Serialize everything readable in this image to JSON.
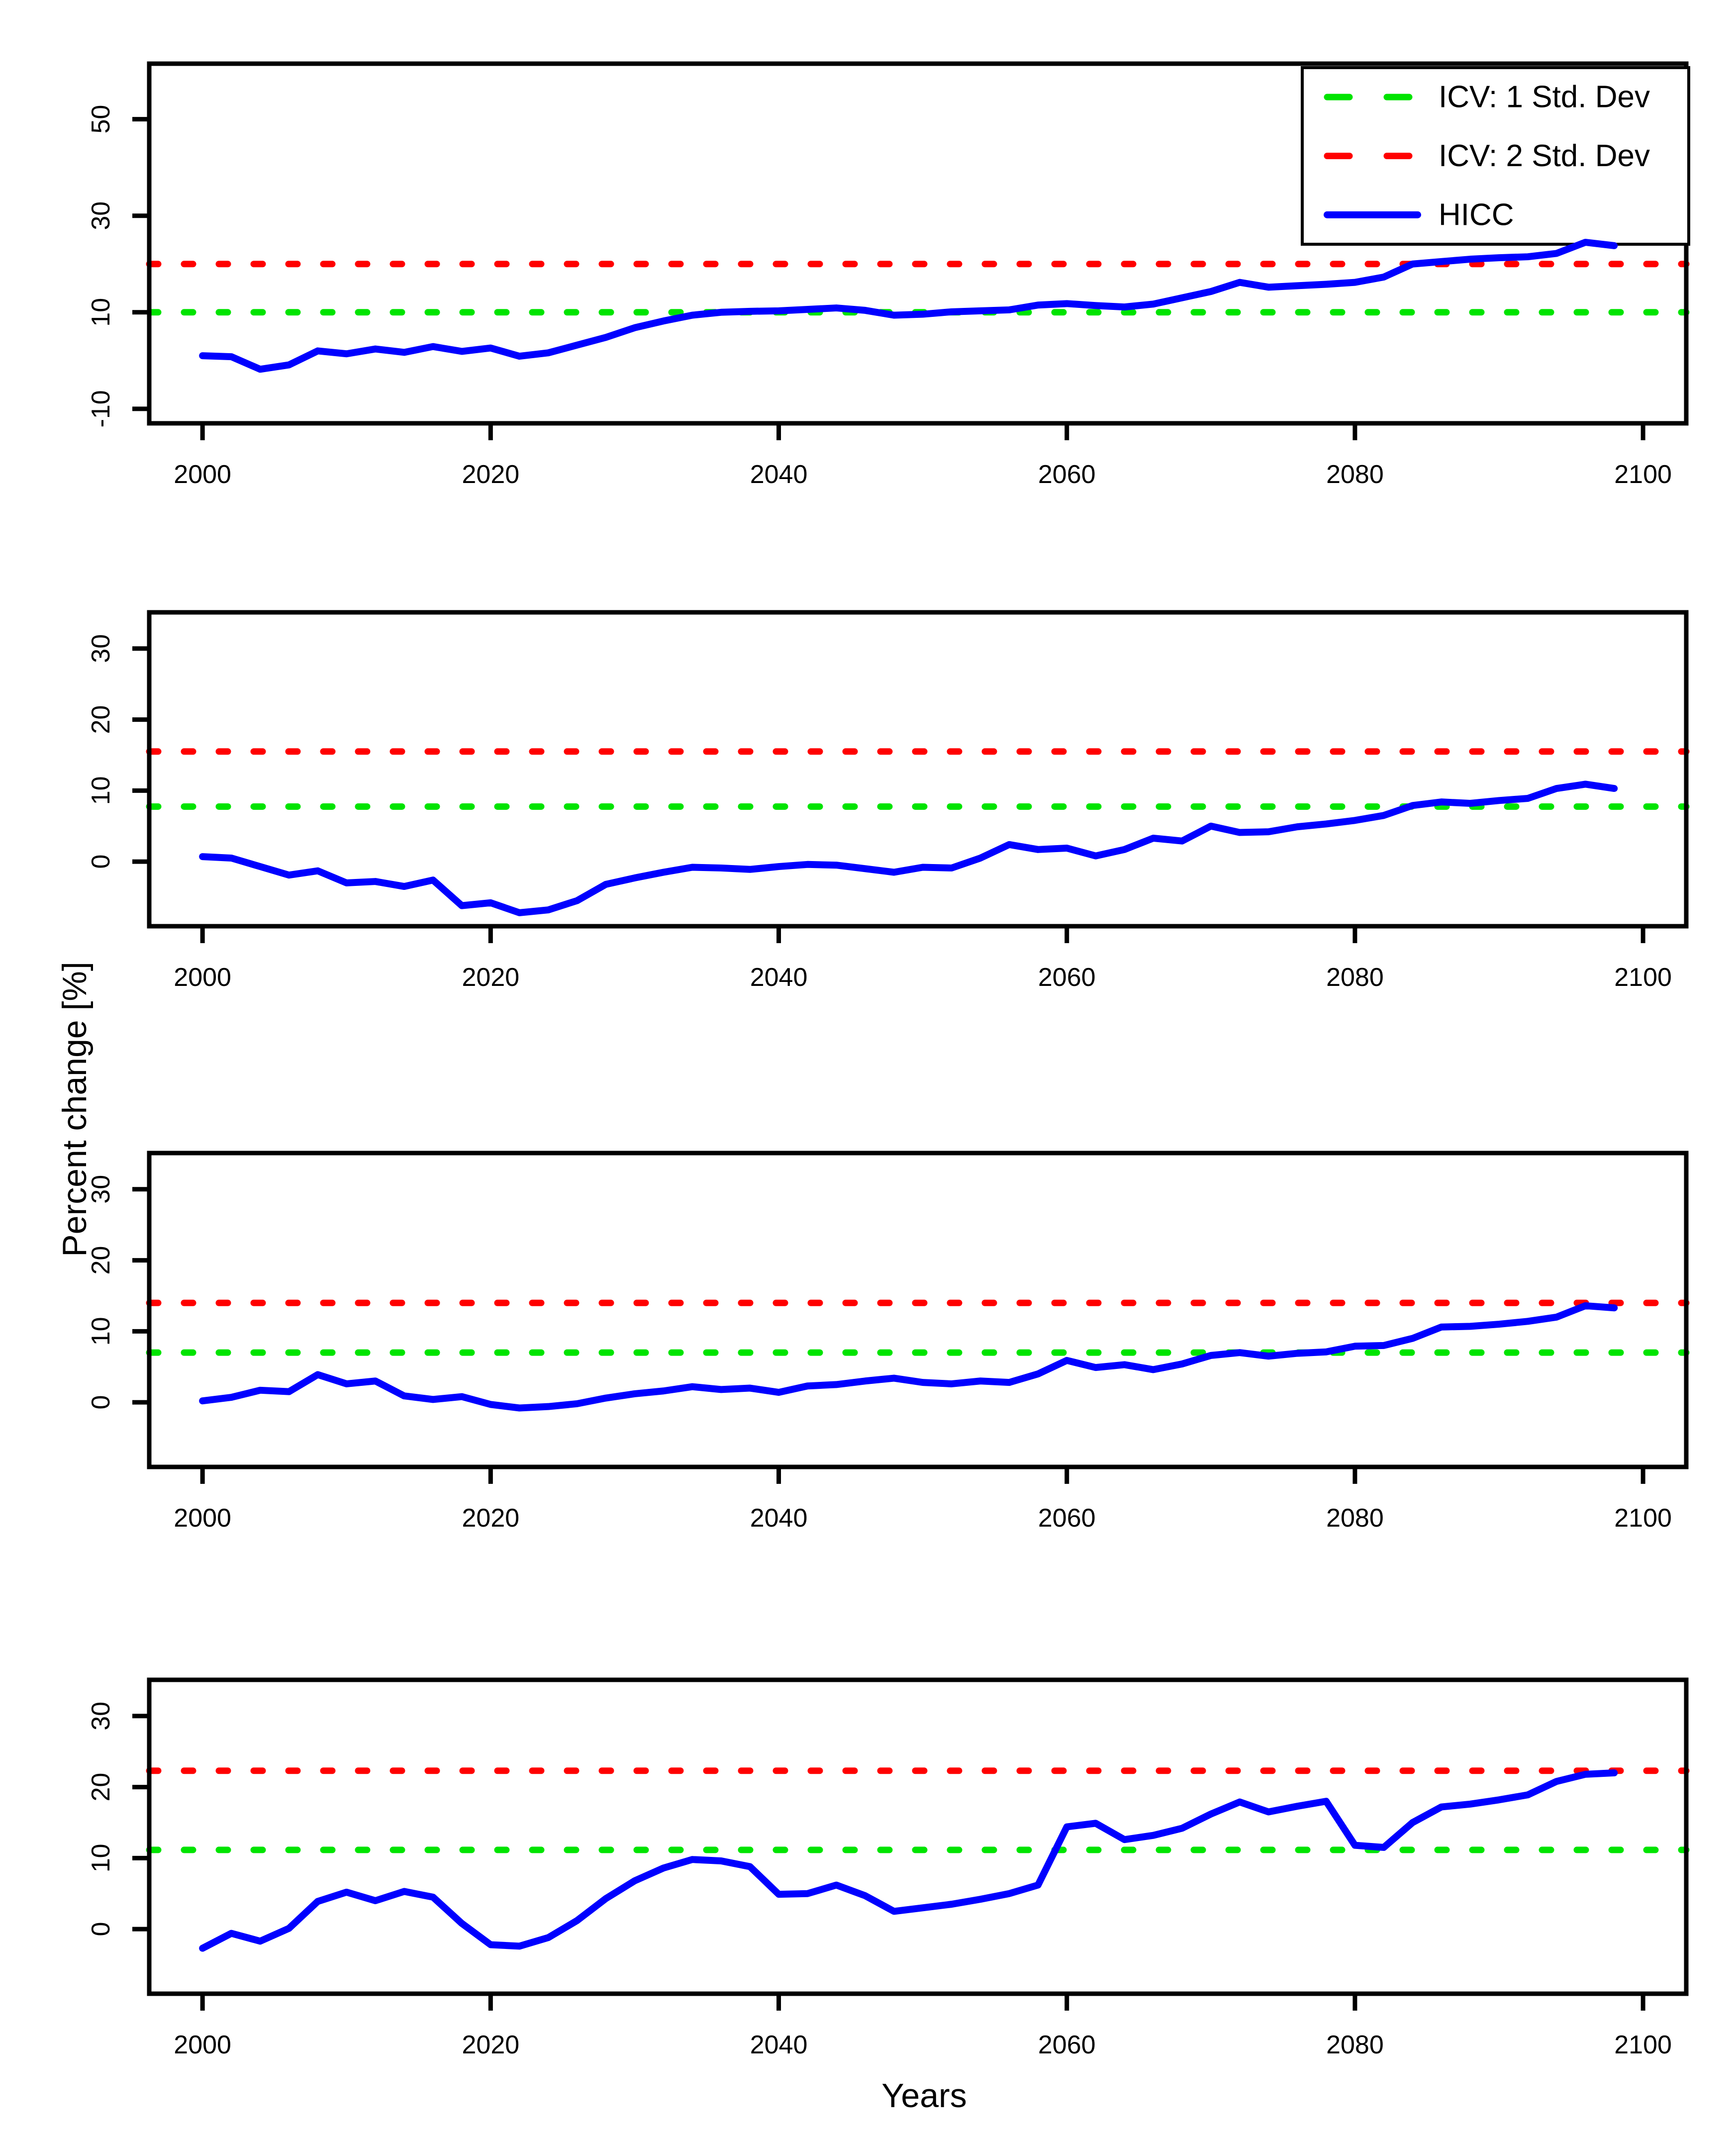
{
  "figure": {
    "ylabel": "Percent change [%]",
    "xlabel": "Years",
    "background": "#ffffff",
    "axis_color": "#000000"
  },
  "legend": {
    "position": "top-right-panel-1",
    "items": [
      {
        "label": "ICV: 1 Std. Dev",
        "color": "#00e400",
        "style": "dashed"
      },
      {
        "label": "ICV: 2 Std. Dev",
        "color": "#ff0000",
        "style": "dashed"
      },
      {
        "label": "HICC",
        "color": "#0000ff",
        "style": "solid"
      }
    ]
  },
  "chart_data": [
    {
      "type": "line",
      "panel": 1,
      "title": "",
      "xlabel": "",
      "ylabel": "",
      "grid": false,
      "xlim": [
        1996.3,
        2103.0
      ],
      "ylim": [
        -13.0,
        61.5
      ],
      "xticks": [
        2000,
        2020,
        2040,
        2060,
        2080,
        2100
      ],
      "yticks": [
        -10,
        10,
        30,
        50
      ],
      "x": [
        2000,
        2002,
        2004,
        2006,
        2008,
        2010,
        2012,
        2014,
        2016,
        2018,
        2020,
        2022,
        2024,
        2026,
        2028,
        2030,
        2032,
        2034,
        2036,
        2038,
        2040,
        2042,
        2044,
        2046,
        2048,
        2050,
        2052,
        2054,
        2056,
        2058,
        2060,
        2062,
        2064,
        2066,
        2068,
        2070,
        2072,
        2074,
        2076,
        2078,
        2080,
        2082,
        2084,
        2086,
        2088,
        2090,
        2092,
        2094,
        2096,
        2098
      ],
      "series": [
        {
          "name": "HICC",
          "color": "#0000ff",
          "values": [
            1.0,
            0.8,
            -1.8,
            -0.9,
            2.0,
            1.4,
            2.4,
            1.7,
            2.9,
            1.9,
            2.6,
            0.9,
            1.6,
            3.2,
            4.8,
            6.8,
            8.2,
            9.4,
            10.0,
            10.2,
            10.3,
            10.6,
            10.9,
            10.4,
            9.4,
            9.6,
            10.1,
            10.3,
            10.5,
            11.5,
            11.8,
            11.4,
            11.1,
            11.7,
            13.0,
            14.3,
            16.2,
            15.2,
            15.5,
            15.8,
            16.2,
            17.3,
            20.0,
            20.5,
            21.0,
            21.3,
            21.5,
            22.2,
            24.5,
            23.8
          ]
        }
      ],
      "thresholds": [
        {
          "name": "ICV: 1 Std. Dev",
          "value": 10.0,
          "color": "#00e400",
          "style": "dashed"
        },
        {
          "name": "ICV: 2 Std. Dev",
          "value": 20.0,
          "color": "#ff0000",
          "style": "dashed"
        }
      ],
      "show_legend": true
    },
    {
      "type": "line",
      "panel": 2,
      "title": "",
      "xlabel": "",
      "ylabel": "",
      "grid": false,
      "xlim": [
        1996.3,
        2103.0
      ],
      "ylim": [
        -9.1,
        35.1
      ],
      "xticks": [
        2000,
        2020,
        2040,
        2060,
        2080,
        2100
      ],
      "yticks": [
        0,
        10,
        20,
        30
      ],
      "x": [
        2000,
        2002,
        2004,
        2006,
        2008,
        2010,
        2012,
        2014,
        2016,
        2018,
        2020,
        2022,
        2024,
        2026,
        2028,
        2030,
        2032,
        2034,
        2036,
        2038,
        2040,
        2042,
        2044,
        2046,
        2048,
        2050,
        2052,
        2054,
        2056,
        2058,
        2060,
        2062,
        2064,
        2066,
        2068,
        2070,
        2072,
        2074,
        2076,
        2078,
        2080,
        2082,
        2084,
        2086,
        2088,
        2090,
        2092,
        2094,
        2096,
        2098
      ],
      "series": [
        {
          "name": "HICC",
          "color": "#0000ff",
          "values": [
            0.7,
            0.5,
            -0.7,
            -1.9,
            -1.3,
            -3.0,
            -2.8,
            -3.5,
            -2.6,
            -6.2,
            -5.8,
            -7.2,
            -6.8,
            -5.5,
            -3.2,
            -2.3,
            -1.5,
            -0.8,
            -0.9,
            -1.1,
            -0.7,
            -0.4,
            -0.5,
            -1.0,
            -1.5,
            -0.8,
            -0.9,
            0.5,
            2.4,
            1.7,
            1.9,
            0.8,
            1.7,
            3.3,
            2.9,
            5.0,
            4.1,
            4.2,
            4.9,
            5.3,
            5.8,
            6.5,
            7.9,
            8.4,
            8.2,
            8.6,
            8.9,
            10.3,
            10.9,
            10.3
          ]
        }
      ],
      "thresholds": [
        {
          "name": "ICV: 1 Std. Dev",
          "value": 7.75,
          "color": "#00e400",
          "style": "dashed"
        },
        {
          "name": "ICV: 2 Std. Dev",
          "value": 15.5,
          "color": "#ff0000",
          "style": "dashed"
        }
      ],
      "show_legend": false
    },
    {
      "type": "line",
      "panel": 3,
      "title": "",
      "xlabel": "",
      "ylabel": "",
      "grid": false,
      "xlim": [
        1996.3,
        2103.0
      ],
      "ylim": [
        -9.1,
        35.1
      ],
      "xticks": [
        2000,
        2020,
        2040,
        2060,
        2080,
        2100
      ],
      "yticks": [
        0,
        10,
        20,
        30
      ],
      "x": [
        2000,
        2002,
        2004,
        2006,
        2008,
        2010,
        2012,
        2014,
        2016,
        2018,
        2020,
        2022,
        2024,
        2026,
        2028,
        2030,
        2032,
        2034,
        2036,
        2038,
        2040,
        2042,
        2044,
        2046,
        2048,
        2050,
        2052,
        2054,
        2056,
        2058,
        2060,
        2062,
        2064,
        2066,
        2068,
        2070,
        2072,
        2074,
        2076,
        2078,
        2080,
        2082,
        2084,
        2086,
        2088,
        2090,
        2092,
        2094,
        2096,
        2098
      ],
      "series": [
        {
          "name": "HICC",
          "color": "#0000ff",
          "values": [
            0.2,
            0.7,
            1.7,
            1.5,
            3.9,
            2.6,
            3.0,
            0.9,
            0.4,
            0.8,
            -0.3,
            -0.8,
            -0.6,
            -0.2,
            0.6,
            1.2,
            1.6,
            2.2,
            1.8,
            2.0,
            1.4,
            2.3,
            2.5,
            3.0,
            3.4,
            2.8,
            2.6,
            3.0,
            2.8,
            4.0,
            5.9,
            4.9,
            5.3,
            4.6,
            5.4,
            6.6,
            7.0,
            6.5,
            6.9,
            7.1,
            7.9,
            8.0,
            9.0,
            10.6,
            10.7,
            11.0,
            11.4,
            12.0,
            13.6,
            13.3
          ]
        }
      ],
      "thresholds": [
        {
          "name": "ICV: 1 Std. Dev",
          "value": 7.0,
          "color": "#00e400",
          "style": "dashed"
        },
        {
          "name": "ICV: 2 Std. Dev",
          "value": 14.0,
          "color": "#ff0000",
          "style": "dashed"
        }
      ],
      "show_legend": false
    },
    {
      "type": "line",
      "panel": 4,
      "title": "",
      "xlabel": "Years",
      "ylabel": "",
      "grid": false,
      "xlim": [
        1996.3,
        2103.0
      ],
      "ylim": [
        -9.1,
        35.1
      ],
      "xticks": [
        2000,
        2020,
        2040,
        2060,
        2080,
        2100
      ],
      "yticks": [
        0,
        10,
        20,
        30
      ],
      "x": [
        2000,
        2002,
        2004,
        2006,
        2008,
        2010,
        2012,
        2014,
        2016,
        2018,
        2020,
        2022,
        2024,
        2026,
        2028,
        2030,
        2032,
        2034,
        2036,
        2038,
        2040,
        2042,
        2044,
        2046,
        2048,
        2050,
        2052,
        2054,
        2056,
        2058,
        2060,
        2062,
        2064,
        2066,
        2068,
        2070,
        2072,
        2074,
        2076,
        2078,
        2080,
        2082,
        2084,
        2086,
        2088,
        2090,
        2092,
        2094,
        2096,
        2098
      ],
      "series": [
        {
          "name": "HICC",
          "color": "#0000ff",
          "values": [
            -2.7,
            -0.6,
            -1.7,
            0.1,
            3.9,
            5.2,
            4.0,
            5.3,
            4.5,
            0.8,
            -2.2,
            -2.4,
            -1.2,
            1.2,
            4.3,
            6.8,
            8.6,
            9.8,
            9.6,
            8.8,
            4.9,
            5.0,
            6.2,
            4.7,
            2.5,
            3.0,
            3.5,
            4.2,
            5.0,
            6.2,
            14.4,
            14.9,
            12.6,
            13.2,
            14.2,
            16.2,
            17.9,
            16.5,
            17.3,
            18.0,
            11.8,
            11.5,
            15.0,
            17.2,
            17.6,
            18.2,
            18.9,
            20.8,
            21.8,
            22.0
          ]
        }
      ],
      "thresholds": [
        {
          "name": "ICV: 1 Std. Dev",
          "value": 11.15,
          "color": "#00e400",
          "style": "dashed"
        },
        {
          "name": "ICV: 2 Std. Dev",
          "value": 22.3,
          "color": "#ff0000",
          "style": "dashed"
        }
      ],
      "show_legend": false
    }
  ]
}
